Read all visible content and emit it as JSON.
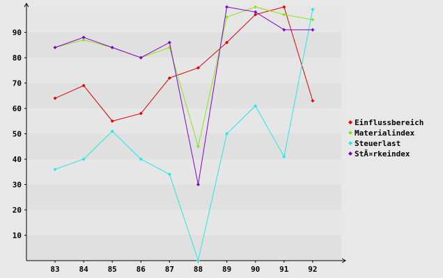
{
  "chart_data": {
    "type": "line",
    "title": "",
    "xlabel": "",
    "ylabel": "",
    "x": [
      "83",
      "84",
      "85",
      "86",
      "87",
      "88",
      "89",
      "90",
      "91",
      "92"
    ],
    "ylim": [
      0,
      100
    ],
    "yticks": [
      10,
      20,
      30,
      40,
      50,
      60,
      70,
      80,
      90
    ],
    "grid": "horizontal bands",
    "legend_position": "right",
    "series": [
      {
        "name": "Einflussbereich",
        "color": "#e00000",
        "values": [
          64,
          69,
          55,
          58,
          72,
          76,
          86,
          97,
          100,
          63
        ]
      },
      {
        "name": "Materialindex",
        "color": "#88e810",
        "values": [
          84,
          87,
          84,
          80,
          84,
          45,
          96,
          100,
          97,
          95
        ]
      },
      {
        "name": "Steuerlast",
        "color": "#22e8e8",
        "values": [
          36,
          40,
          51,
          40,
          34,
          0,
          50,
          61,
          41,
          99
        ]
      },
      {
        "name": "StÃ¤rkeindex",
        "color": "#8000d0",
        "values": [
          84,
          88,
          84,
          80,
          86,
          30,
          100,
          98,
          91,
          91
        ]
      }
    ]
  }
}
